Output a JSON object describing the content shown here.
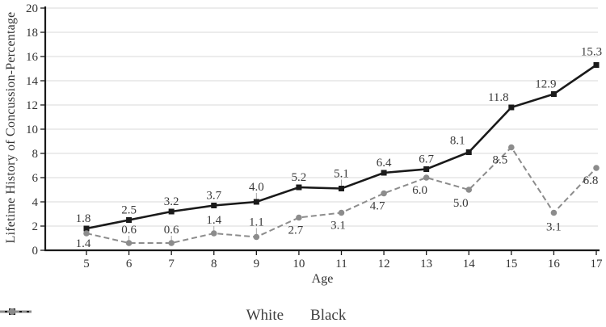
{
  "chart_data": {
    "type": "line",
    "title": "",
    "xlabel": "Age",
    "ylabel": "Lifetime History of Concussion-Percentage",
    "x": [
      5,
      6,
      7,
      8,
      9,
      10,
      11,
      12,
      13,
      14,
      15,
      16,
      17
    ],
    "ylim": [
      0,
      20
    ],
    "ytick_step": 2,
    "grid": true,
    "legend_position": "bottom",
    "colors": {
      "axis": "#1a1a1a",
      "gridline": "#d9d9d9",
      "leader": "#a6a6a6",
      "text": "#333333"
    },
    "series": [
      {
        "name": "White",
        "color": "#1a1a1a",
        "dash": "solid",
        "marker": "square",
        "values": [
          1.8,
          2.5,
          3.2,
          3.7,
          4.0,
          5.2,
          5.1,
          6.4,
          6.7,
          8.1,
          11.8,
          12.9,
          15.3
        ],
        "point_labels": [
          "1.8",
          "2.5",
          "3.2",
          "3.7",
          "4.0",
          "5.2",
          "5.1",
          "6.4",
          "6.7",
          "8.1",
          "11.8",
          "12.9",
          "15.3"
        ],
        "label_layout": [
          [
            -4,
            -8,
            0
          ],
          [
            0,
            -8,
            0
          ],
          [
            0,
            -8,
            0
          ],
          [
            0,
            -8,
            0
          ],
          [
            0,
            -14,
            1
          ],
          [
            0,
            -8,
            0
          ],
          [
            0,
            -14,
            1
          ],
          [
            0,
            -8,
            0
          ],
          [
            0,
            -8,
            0
          ],
          [
            -14,
            -10,
            0
          ],
          [
            -16,
            -8,
            0
          ],
          [
            -10,
            -8,
            0
          ],
          [
            -6,
            -12,
            0
          ]
        ]
      },
      {
        "name": "Black",
        "color": "#8c8c8c",
        "dash": "dashed",
        "marker": "circle",
        "values": [
          1.4,
          0.6,
          0.6,
          1.4,
          1.1,
          2.7,
          3.1,
          4.7,
          6.0,
          5.0,
          8.5,
          3.1,
          6.8
        ],
        "point_labels": [
          "1.4",
          "0.6",
          "0.6",
          "1.4",
          "1.1",
          "2.7",
          "3.1",
          "4.7",
          "6.0",
          "5.0",
          "8.5",
          "3.1",
          "6.8"
        ],
        "label_layout": [
          [
            -4,
            17,
            0
          ],
          [
            0,
            -12,
            1
          ],
          [
            0,
            -12,
            1
          ],
          [
            0,
            -12,
            1
          ],
          [
            0,
            -14,
            1
          ],
          [
            -4,
            20,
            0
          ],
          [
            -4,
            20,
            0
          ],
          [
            -8,
            20,
            0
          ],
          [
            -8,
            20,
            0
          ],
          [
            -10,
            21,
            0
          ],
          [
            -14,
            20,
            0
          ],
          [
            0,
            22,
            0
          ],
          [
            -7,
            20,
            0
          ]
        ]
      }
    ]
  }
}
